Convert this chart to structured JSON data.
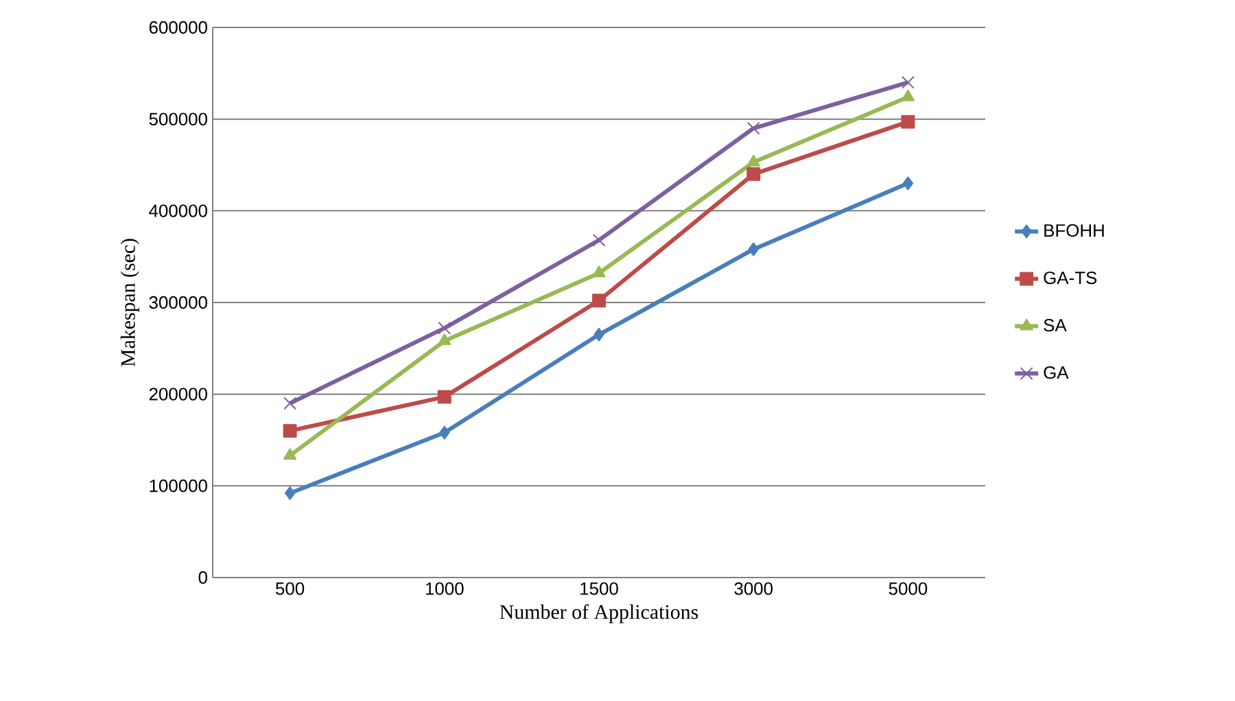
{
  "chart_data": {
    "type": "line",
    "xlabel": "Number of Applications",
    "ylabel": "Makespan (sec)",
    "categories": [
      "500",
      "1000",
      "1500",
      "3000",
      "5000"
    ],
    "series": [
      {
        "name": "BFOHH",
        "color": "#4a7ebb",
        "marker": "diamond",
        "values": [
          92000,
          158000,
          265000,
          358000,
          430000
        ]
      },
      {
        "name": "GA-TS",
        "color": "#be4b48",
        "marker": "square",
        "values": [
          160000,
          197000,
          302000,
          440000,
          497000
        ]
      },
      {
        "name": "SA",
        "color": "#98b954",
        "marker": "triangle",
        "values": [
          133000,
          258000,
          332000,
          453000,
          524000
        ]
      },
      {
        "name": "GA",
        "color": "#7d60a0",
        "marker": "cross",
        "values": [
          190000,
          272000,
          368000,
          490000,
          540000
        ]
      }
    ],
    "ylim": [
      0,
      600000
    ],
    "yticks": [
      0,
      100000,
      200000,
      300000,
      400000,
      500000,
      600000
    ],
    "grid": "y",
    "legend": "right"
  }
}
